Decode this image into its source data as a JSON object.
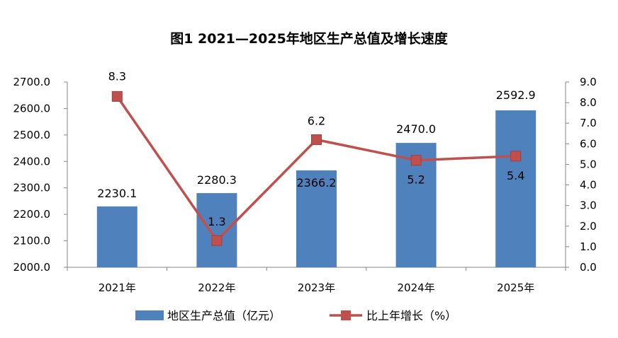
{
  "chart_data": {
    "type": "bar+line",
    "title": "图1   2021—2025年地区生产总值及增长速度",
    "categories": [
      "2021年",
      "2022年",
      "2023年",
      "2024年",
      "2025年"
    ],
    "series": [
      {
        "name": "地区生产总值（亿元）",
        "type": "bar",
        "axis": "left",
        "values": [
          2230.1,
          2280.3,
          2366.2,
          2470.0,
          2592.9
        ],
        "labels": [
          "2230.1",
          "2280.3",
          "2366.2",
          "2470.0",
          "2592.9"
        ],
        "color": "#4F81BD"
      },
      {
        "name": "比上年增长（%）",
        "type": "line",
        "axis": "right",
        "values": [
          8.3,
          1.3,
          6.2,
          5.2,
          5.4
        ],
        "labels": [
          "8.3",
          "1.3",
          "6.2",
          "5.2",
          "5.4"
        ],
        "color": "#C0504D"
      }
    ],
    "y_left": {
      "min": 2000,
      "max": 2700,
      "ticks": [
        "2000.0",
        "2100.0",
        "2200.0",
        "2300.0",
        "2400.0",
        "2500.0",
        "2600.0",
        "2700.0"
      ]
    },
    "y_right": {
      "min": 0,
      "max": 9,
      "ticks": [
        "0.0",
        "1.0",
        "2.0",
        "3.0",
        "4.0",
        "5.0",
        "6.0",
        "7.0",
        "8.0",
        "9.0"
      ]
    },
    "grid": false,
    "legend": "bottom"
  }
}
